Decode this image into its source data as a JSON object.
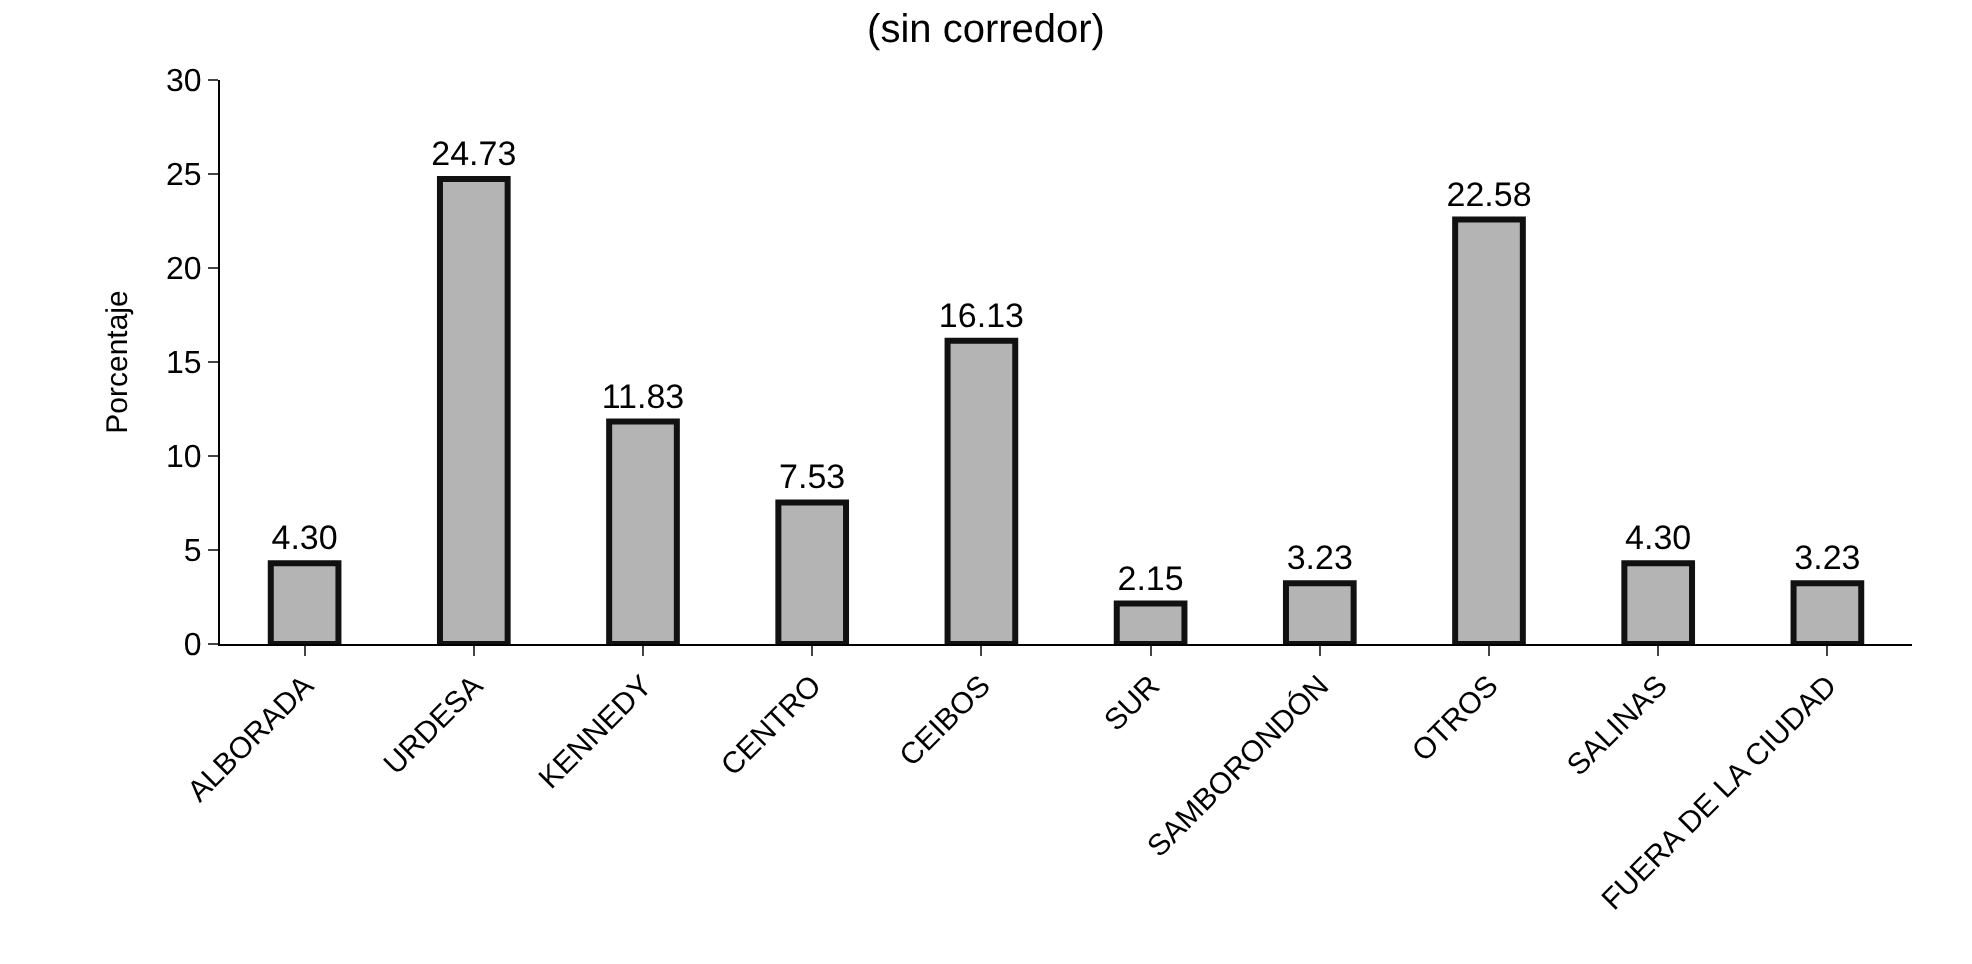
{
  "chart_data": {
    "type": "bar",
    "title": "(sin corredor)",
    "ylabel": "Porcentaje",
    "categories": [
      "ALBORADA",
      "URDESA",
      "KENNEDY",
      "CENTRO",
      "CEIBOS",
      "SUR",
      "SAMBORONDÓN",
      "OTROS",
      "SALINAS",
      "FUERA DE LA CIUDAD"
    ],
    "values": [
      4.3,
      24.73,
      11.83,
      7.53,
      16.13,
      2.15,
      3.23,
      22.58,
      4.3,
      3.23
    ],
    "value_labels": [
      "4.30",
      "24.73",
      "11.83",
      "7.53",
      "16.13",
      "2.15",
      "3.23",
      "22.58",
      "4.30",
      "3.23"
    ],
    "color": "#b4b4b4",
    "ylim": [
      0,
      30
    ],
    "yticks": [
      0,
      5,
      10,
      15,
      20,
      25,
      30
    ],
    "legend": false
  }
}
